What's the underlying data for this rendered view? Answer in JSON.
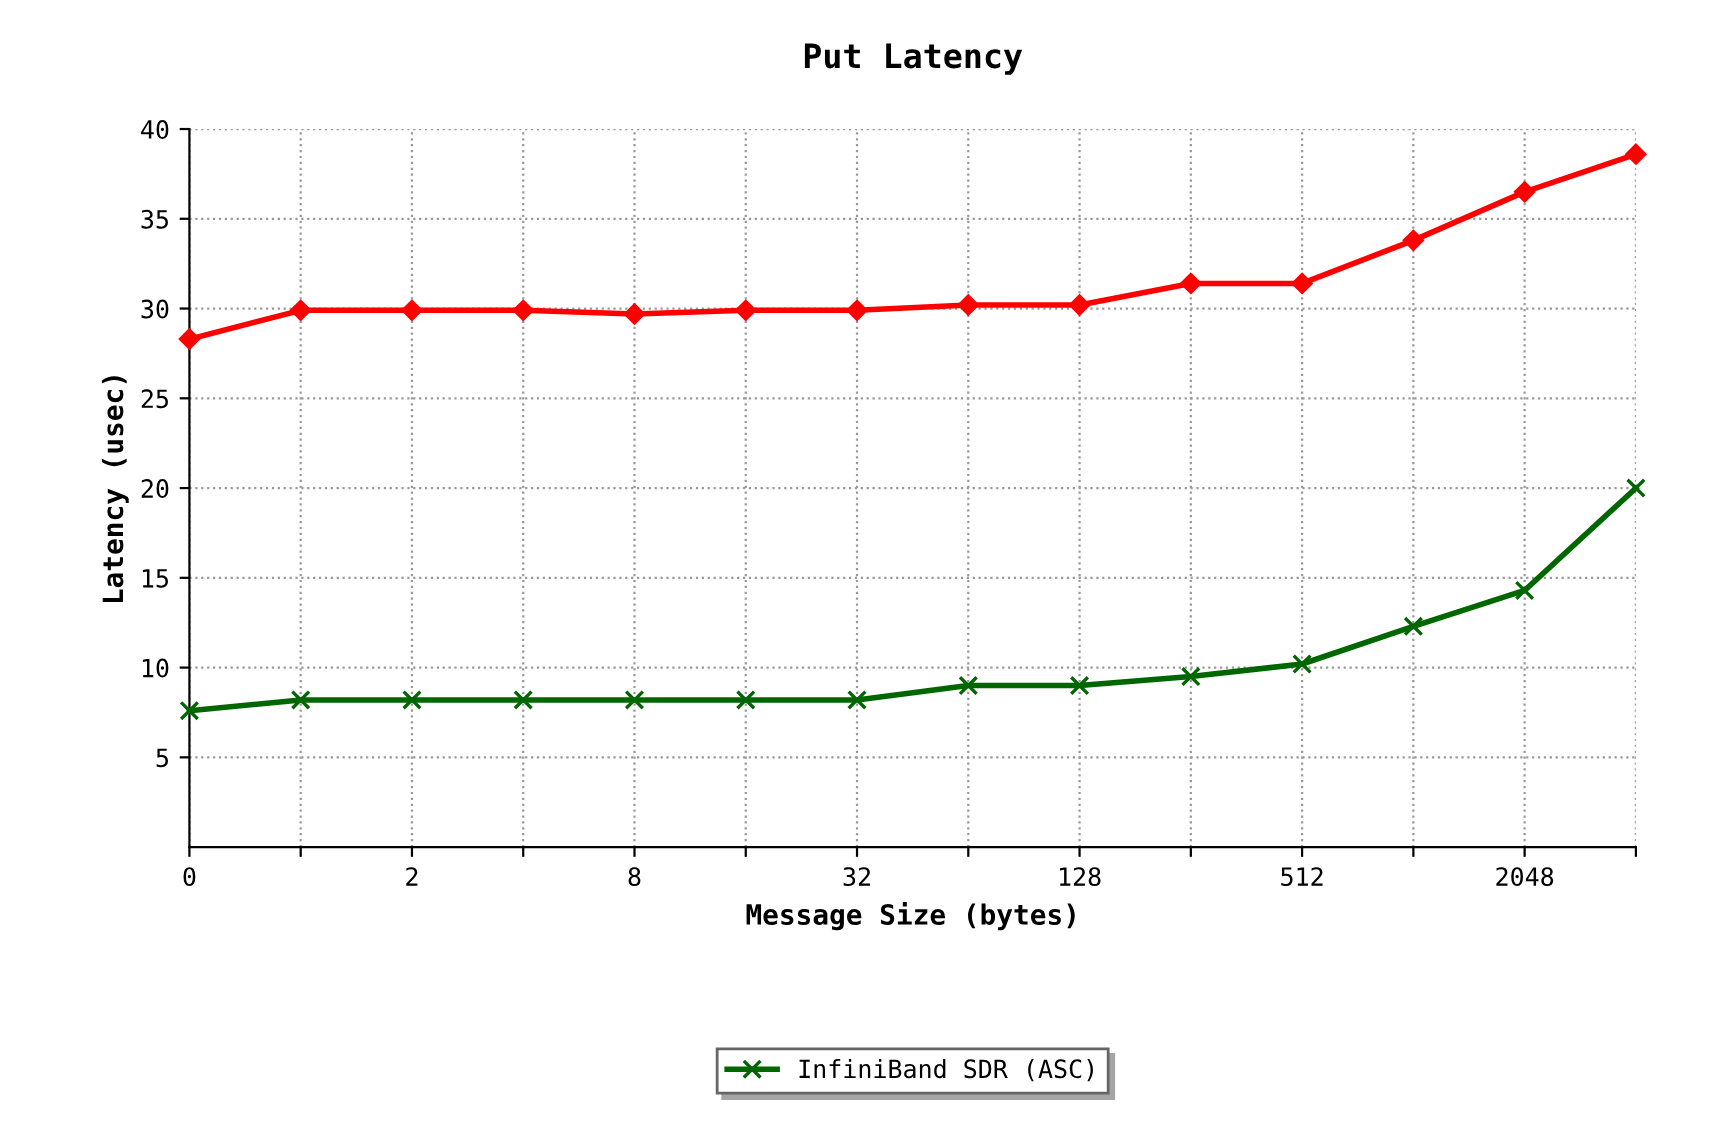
{
  "chart_data": {
    "type": "line",
    "title": "Put Latency",
    "xlabel": "Message Size (bytes)",
    "ylabel": "Latency (usec)",
    "categories": [
      "0",
      null,
      "2",
      null,
      "8",
      null,
      "32",
      null,
      "128",
      null,
      "512",
      null,
      "2048",
      null
    ],
    "series": [
      {
        "name": "InfiniBand SDR (ASC)",
        "color": "#006600",
        "marker": "cross",
        "values": [
          7.6,
          8.2,
          8.2,
          8.2,
          8.2,
          8.2,
          8.2,
          9.0,
          9.0,
          9.5,
          10.2,
          12.3,
          14.3,
          20.0
        ]
      },
      {
        "color": "#ff0000",
        "marker": "diamond",
        "values": [
          28.3,
          29.9,
          29.9,
          29.9,
          29.7,
          29.9,
          29.9,
          30.2,
          30.2,
          31.4,
          31.4,
          33.8,
          36.5,
          38.6
        ]
      }
    ],
    "ylim": [
      0,
      40
    ],
    "yticks": [
      5,
      10,
      15,
      20,
      25,
      30,
      35,
      40
    ],
    "grid": true,
    "legend": "bottom",
    "line_style": "solid"
  }
}
